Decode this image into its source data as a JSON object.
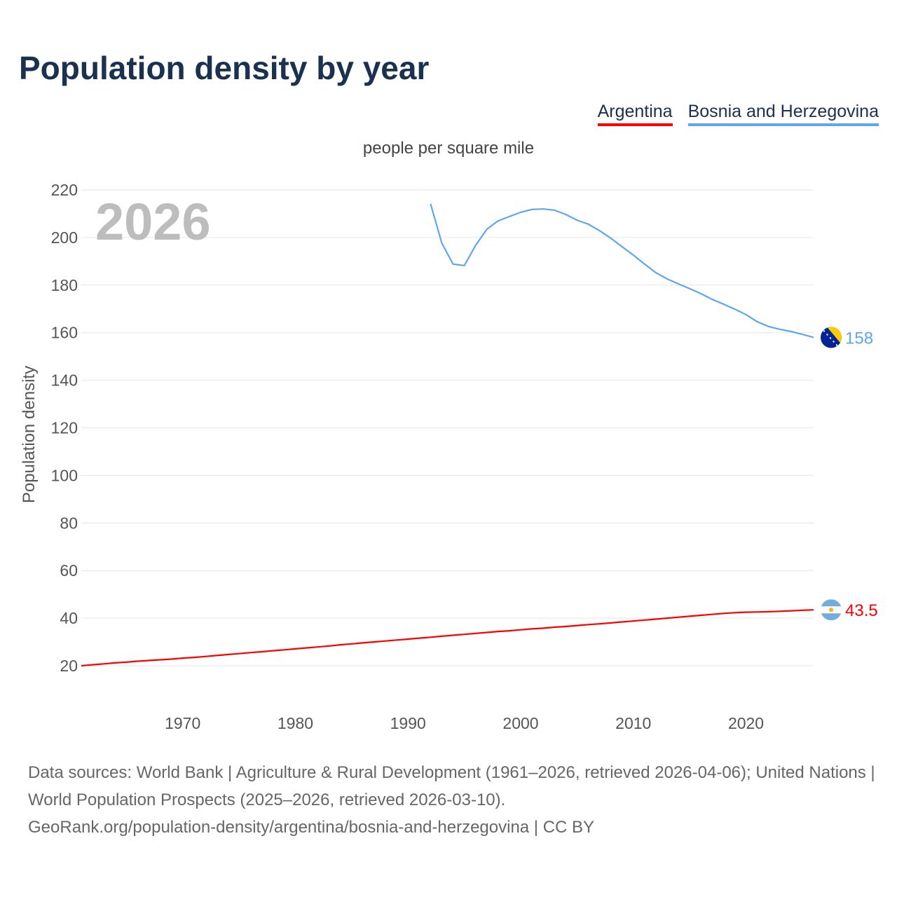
{
  "chart_data": {
    "type": "line",
    "title": "Population density by year",
    "subtitle": "people per square mile",
    "xlabel": "",
    "ylabel": "Population density",
    "highlight_year": "2026",
    "xlim": [
      1961,
      2026
    ],
    "ylim": [
      0,
      220
    ],
    "x_ticks": [
      1970,
      1980,
      1990,
      2000,
      2010,
      2020
    ],
    "y_ticks": [
      20,
      40,
      60,
      80,
      100,
      120,
      140,
      160,
      180,
      200,
      220
    ],
    "grid": true,
    "legend_placement": "top-right",
    "series": [
      {
        "name": "Argentina",
        "color": "#ff0000",
        "end_label": "43.5",
        "flag": "argentina-flag",
        "x_start": 1961,
        "values": [
          20.0,
          20.4,
          20.8,
          21.2,
          21.5,
          21.9,
          22.2,
          22.5,
          22.8,
          23.2,
          23.5,
          23.9,
          24.3,
          24.7,
          25.1,
          25.5,
          25.9,
          26.3,
          26.7,
          27.1,
          27.5,
          27.9,
          28.3,
          28.8,
          29.2,
          29.6,
          30.0,
          30.4,
          30.8,
          31.2,
          31.6,
          32.0,
          32.4,
          32.8,
          33.2,
          33.6,
          34.0,
          34.4,
          34.7,
          35.1,
          35.5,
          35.8,
          36.2,
          36.5,
          36.9,
          37.3,
          37.6,
          38.0,
          38.4,
          38.8,
          39.2,
          39.6,
          40.0,
          40.4,
          40.8,
          41.2,
          41.6,
          42.0,
          42.3,
          42.5,
          42.6,
          42.7,
          42.9,
          43.1,
          43.3,
          43.5
        ]
      },
      {
        "name": "Bosnia and Herzegovina",
        "color": "#5ea6ee",
        "end_label": "158",
        "flag": "bosnia-flag",
        "x_start": 1992,
        "values": [
          214.1,
          197.6,
          188.8,
          188.2,
          196.7,
          203.5,
          207.0,
          208.8,
          210.6,
          211.8,
          212.0,
          211.5,
          209.7,
          207.3,
          205.6,
          202.9,
          199.7,
          196.1,
          192.6,
          188.8,
          185.2,
          182.6,
          180.5,
          178.5,
          176.4,
          174.0,
          172.0,
          169.9,
          167.6,
          164.6,
          162.6,
          161.4,
          160.5,
          159.3,
          158.0
        ]
      }
    ]
  },
  "footer": {
    "line1": "Data sources: World Bank | Agriculture & Rural Development (1961–2026, retrieved 2026-04-06); United Nations | World Population Prospects (2025–2026, retrieved 2026-03-10).",
    "line2": "GeoRank.org/population-density/argentina/bosnia-and-herzegovina | CC BY"
  }
}
